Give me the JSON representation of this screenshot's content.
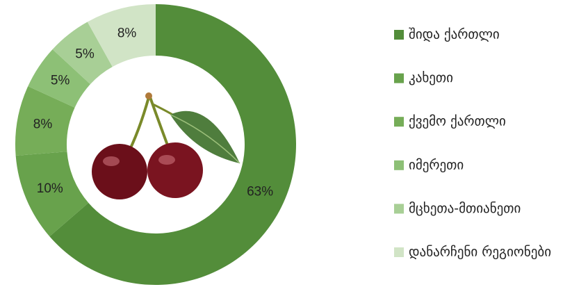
{
  "chart_data": {
    "type": "donut",
    "categories": [
      "შიდა ქართლი",
      "კახეთი",
      "ქვემო ქართლი",
      "იმერეთი",
      "მცხეთა-მთიანეთი",
      "დანარჩენი რეგიონები"
    ],
    "values": [
      63,
      10,
      8,
      5,
      5,
      8
    ],
    "value_labels": [
      "63%",
      "10%",
      "8%",
      "5%",
      "5%",
      "8%"
    ],
    "colors": [
      "#538d3a",
      "#68a24c",
      "#76ad58",
      "#8dc076",
      "#a8cf96",
      "#d1e4c6"
    ],
    "legend": "right"
  }
}
